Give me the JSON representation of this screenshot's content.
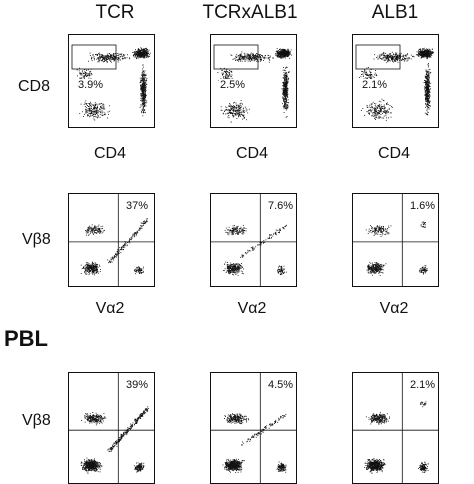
{
  "columns": [
    "TCR",
    "TCRxALB1",
    "ALB1"
  ],
  "row_labels": {
    "cd8": "CD8",
    "vb8_top": "Vβ8",
    "vb8_pbl": "Vβ8"
  },
  "x_labels": {
    "cd4": "CD4",
    "va2": "Vα2"
  },
  "section": "PBL",
  "row1_pct": [
    "3.9%",
    "2.5%",
    "2.1%"
  ],
  "row2_pct": [
    "37%",
    "7.6%",
    "1.6%"
  ],
  "row3_pct": [
    "39%",
    "4.5%",
    "2.1%"
  ]
}
